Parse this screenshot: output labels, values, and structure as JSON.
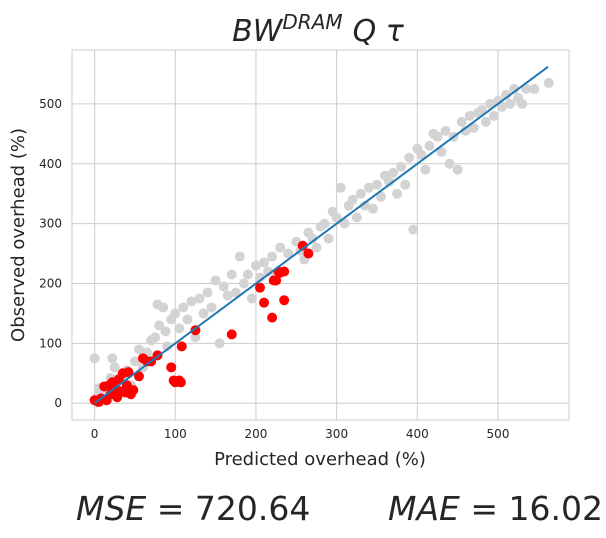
{
  "chart_data": {
    "type": "scatter",
    "title": {
      "base": "BW",
      "sup": "DRAM",
      "suffix": "Q τ"
    },
    "xlabel": "Predicted overhead (%)",
    "ylabel": "Observed overhead (%)",
    "xlim": [
      -28,
      588
    ],
    "ylim": [
      -28,
      590
    ],
    "xticks": [
      0,
      100,
      200,
      300,
      400,
      500
    ],
    "yticks": [
      0,
      100,
      200,
      300,
      400,
      500
    ],
    "grid": true,
    "colors": {
      "background_points": "#d3d3d3",
      "highlight_points": "#ff0000",
      "fit_line": "#1f77b4"
    },
    "fit_line": {
      "x": [
        0,
        562
      ],
      "y": [
        0,
        562
      ]
    },
    "series_gray": [
      [
        0,
        75
      ],
      [
        3,
        10
      ],
      [
        5,
        25
      ],
      [
        8,
        3
      ],
      [
        10,
        15
      ],
      [
        15,
        20
      ],
      [
        20,
        42
      ],
      [
        25,
        60
      ],
      [
        22,
        75
      ],
      [
        28,
        38
      ],
      [
        35,
        45
      ],
      [
        40,
        55
      ],
      [
        45,
        30
      ],
      [
        50,
        70
      ],
      [
        55,
        90
      ],
      [
        60,
        60
      ],
      [
        65,
        85
      ],
      [
        70,
        105
      ],
      [
        75,
        110
      ],
      [
        78,
        165
      ],
      [
        80,
        130
      ],
      [
        85,
        160
      ],
      [
        88,
        120
      ],
      [
        90,
        95
      ],
      [
        95,
        140
      ],
      [
        100,
        150
      ],
      [
        105,
        125
      ],
      [
        110,
        160
      ],
      [
        115,
        140
      ],
      [
        120,
        170
      ],
      [
        125,
        110
      ],
      [
        130,
        175
      ],
      [
        135,
        150
      ],
      [
        140,
        185
      ],
      [
        145,
        160
      ],
      [
        150,
        205
      ],
      [
        155,
        100
      ],
      [
        160,
        195
      ],
      [
        165,
        180
      ],
      [
        170,
        215
      ],
      [
        175,
        185
      ],
      [
        180,
        245
      ],
      [
        185,
        200
      ],
      [
        190,
        215
      ],
      [
        195,
        175
      ],
      [
        200,
        230
      ],
      [
        205,
        210
      ],
      [
        210,
        235
      ],
      [
        215,
        220
      ],
      [
        220,
        245
      ],
      [
        225,
        215
      ],
      [
        230,
        260
      ],
      [
        240,
        250
      ],
      [
        250,
        270
      ],
      [
        255,
        255
      ],
      [
        260,
        240
      ],
      [
        265,
        285
      ],
      [
        270,
        275
      ],
      [
        275,
        260
      ],
      [
        280,
        295
      ],
      [
        285,
        300
      ],
      [
        290,
        275
      ],
      [
        295,
        320
      ],
      [
        300,
        310
      ],
      [
        305,
        360
      ],
      [
        310,
        300
      ],
      [
        315,
        330
      ],
      [
        320,
        340
      ],
      [
        325,
        310
      ],
      [
        330,
        350
      ],
      [
        335,
        330
      ],
      [
        340,
        360
      ],
      [
        345,
        325
      ],
      [
        350,
        365
      ],
      [
        355,
        345
      ],
      [
        360,
        380
      ],
      [
        365,
        370
      ],
      [
        370,
        385
      ],
      [
        375,
        350
      ],
      [
        380,
        395
      ],
      [
        385,
        365
      ],
      [
        390,
        410
      ],
      [
        395,
        290
      ],
      [
        400,
        425
      ],
      [
        405,
        415
      ],
      [
        410,
        390
      ],
      [
        415,
        430
      ],
      [
        420,
        450
      ],
      [
        425,
        445
      ],
      [
        430,
        420
      ],
      [
        435,
        455
      ],
      [
        440,
        400
      ],
      [
        445,
        445
      ],
      [
        450,
        390
      ],
      [
        455,
        470
      ],
      [
        460,
        455
      ],
      [
        465,
        480
      ],
      [
        470,
        460
      ],
      [
        475,
        485
      ],
      [
        480,
        490
      ],
      [
        485,
        470
      ],
      [
        490,
        500
      ],
      [
        495,
        480
      ],
      [
        500,
        505
      ],
      [
        505,
        495
      ],
      [
        510,
        515
      ],
      [
        515,
        500
      ],
      [
        520,
        525
      ],
      [
        525,
        510
      ],
      [
        530,
        500
      ],
      [
        535,
        525
      ],
      [
        545,
        525
      ],
      [
        563,
        535
      ]
    ],
    "series_red": [
      [
        0,
        5
      ],
      [
        5,
        2
      ],
      [
        8,
        8
      ],
      [
        12,
        28
      ],
      [
        15,
        5
      ],
      [
        18,
        30
      ],
      [
        20,
        15
      ],
      [
        22,
        35
      ],
      [
        25,
        25
      ],
      [
        28,
        10
      ],
      [
        30,
        40
      ],
      [
        32,
        20
      ],
      [
        35,
        50
      ],
      [
        38,
        18
      ],
      [
        40,
        30
      ],
      [
        42,
        52
      ],
      [
        45,
        15
      ],
      [
        48,
        22
      ],
      [
        55,
        45
      ],
      [
        60,
        75
      ],
      [
        65,
        70
      ],
      [
        70,
        70
      ],
      [
        78,
        80
      ],
      [
        95,
        60
      ],
      [
        98,
        38
      ],
      [
        100,
        35
      ],
      [
        102,
        37
      ],
      [
        105,
        38
      ],
      [
        107,
        35
      ],
      [
        108,
        95
      ],
      [
        125,
        122
      ],
      [
        170,
        115
      ],
      [
        205,
        193
      ],
      [
        210,
        168
      ],
      [
        220,
        143
      ],
      [
        222,
        205
      ],
      [
        225,
        205
      ],
      [
        228,
        220
      ],
      [
        230,
        218
      ],
      [
        235,
        220
      ],
      [
        235,
        172
      ],
      [
        258,
        263
      ],
      [
        265,
        250
      ]
    ]
  },
  "metrics": {
    "mse_label": "MSE",
    "mse_value": "720.64",
    "mae_label": "MAE",
    "mae_value": "16.02"
  }
}
